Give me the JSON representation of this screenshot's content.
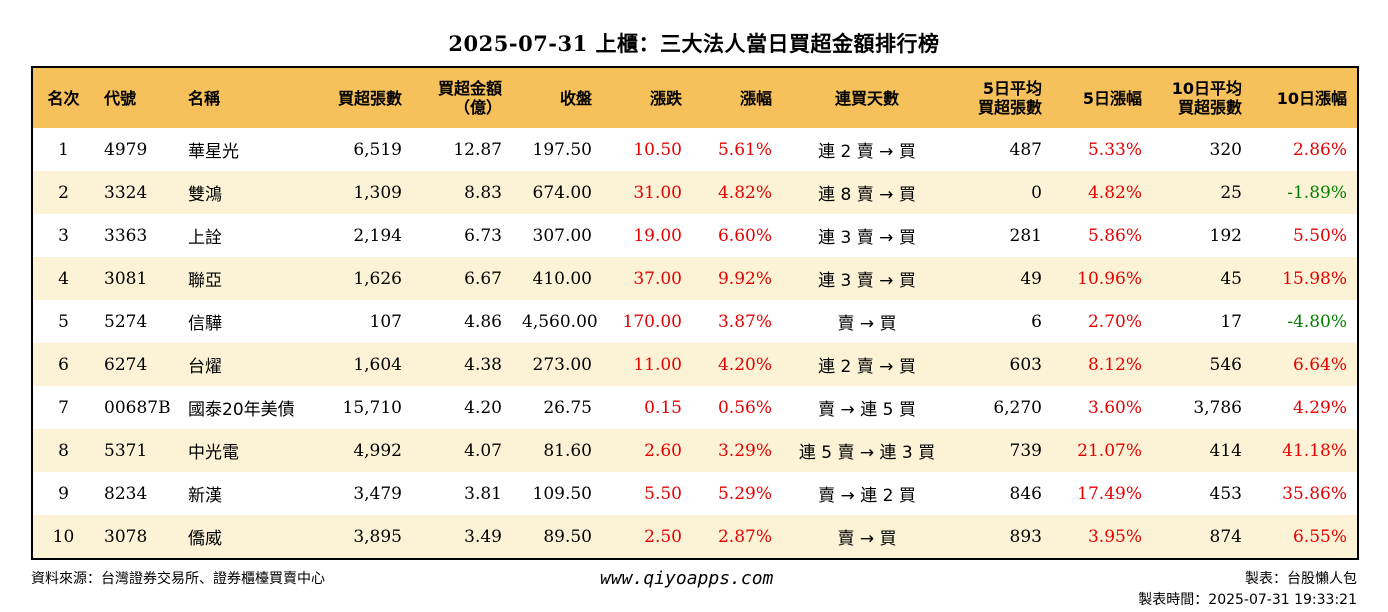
{
  "title": "2025-07-31 上櫃：三大法人當日買超金額排行榜",
  "headers": {
    "rank": "名次",
    "code": "代號",
    "name": "名稱",
    "buy_shares": "買超張數",
    "buy_amount_1": "買超金額",
    "buy_amount_2": "（億）",
    "close": "收盤",
    "change": "漲跌",
    "pct": "漲幅",
    "days": "連買天數",
    "avg5_1": "5日平均",
    "avg5_2": "買超張數",
    "pct5": "5日漲幅",
    "avg10_1": "10日平均",
    "avg10_2": "買超張數",
    "pct10": "10日漲幅"
  },
  "rows": [
    {
      "rank": "1",
      "code": "4979",
      "name": "華星光",
      "buy_shares": "6,519",
      "amount": "12.87",
      "close": "197.50",
      "change": "10.50",
      "pct": "5.61%",
      "days": "連 2 賣 → 買",
      "avg5": "487",
      "pct5": "5.33%",
      "avg10": "320",
      "pct10": "2.86%",
      "pct10_dir": "up"
    },
    {
      "rank": "2",
      "code": "3324",
      "name": "雙鴻",
      "buy_shares": "1,309",
      "amount": "8.83",
      "close": "674.00",
      "change": "31.00",
      "pct": "4.82%",
      "days": "連 8 賣 → 買",
      "avg5": "0",
      "pct5": "4.82%",
      "avg10": "25",
      "pct10": "-1.89%",
      "pct10_dir": "down"
    },
    {
      "rank": "3",
      "code": "3363",
      "name": "上詮",
      "buy_shares": "2,194",
      "amount": "6.73",
      "close": "307.00",
      "change": "19.00",
      "pct": "6.60%",
      "days": "連 3 賣 → 買",
      "avg5": "281",
      "pct5": "5.86%",
      "avg10": "192",
      "pct10": "5.50%",
      "pct10_dir": "up"
    },
    {
      "rank": "4",
      "code": "3081",
      "name": "聯亞",
      "buy_shares": "1,626",
      "amount": "6.67",
      "close": "410.00",
      "change": "37.00",
      "pct": "9.92%",
      "days": "連 3 賣 → 買",
      "avg5": "49",
      "pct5": "10.96%",
      "avg10": "45",
      "pct10": "15.98%",
      "pct10_dir": "up"
    },
    {
      "rank": "5",
      "code": "5274",
      "name": "信驊",
      "buy_shares": "107",
      "amount": "4.86",
      "close": "4,560.00",
      "change": "170.00",
      "pct": "3.87%",
      "days": "賣 → 買",
      "avg5": "6",
      "pct5": "2.70%",
      "avg10": "17",
      "pct10": "-4.80%",
      "pct10_dir": "down"
    },
    {
      "rank": "6",
      "code": "6274",
      "name": "台燿",
      "buy_shares": "1,604",
      "amount": "4.38",
      "close": "273.00",
      "change": "11.00",
      "pct": "4.20%",
      "days": "連 2 賣 → 買",
      "avg5": "603",
      "pct5": "8.12%",
      "avg10": "546",
      "pct10": "6.64%",
      "pct10_dir": "up"
    },
    {
      "rank": "7",
      "code": "00687B",
      "name": "國泰20年美債",
      "buy_shares": "15,710",
      "amount": "4.20",
      "close": "26.75",
      "change": "0.15",
      "pct": "0.56%",
      "days": "賣 → 連 5 買",
      "avg5": "6,270",
      "pct5": "3.60%",
      "avg10": "3,786",
      "pct10": "4.29%",
      "pct10_dir": "up"
    },
    {
      "rank": "8",
      "code": "5371",
      "name": "中光電",
      "buy_shares": "4,992",
      "amount": "4.07",
      "close": "81.60",
      "change": "2.60",
      "pct": "3.29%",
      "days": "連 5 賣 → 連 3 買",
      "avg5": "739",
      "pct5": "21.07%",
      "avg10": "414",
      "pct10": "41.18%",
      "pct10_dir": "up"
    },
    {
      "rank": "9",
      "code": "8234",
      "name": "新漢",
      "buy_shares": "3,479",
      "amount": "3.81",
      "close": "109.50",
      "change": "5.50",
      "pct": "5.29%",
      "days": "賣 → 連 2 買",
      "avg5": "846",
      "pct5": "17.49%",
      "avg10": "453",
      "pct10": "35.86%",
      "pct10_dir": "up"
    },
    {
      "rank": "10",
      "code": "3078",
      "name": "僑威",
      "buy_shares": "3,895",
      "amount": "3.49",
      "close": "89.50",
      "change": "2.50",
      "pct": "2.87%",
      "days": "賣 → 買",
      "avg5": "893",
      "pct5": "3.95%",
      "avg10": "874",
      "pct10": "6.55%",
      "pct10_dir": "up"
    }
  ],
  "footer": {
    "source": "資料來源：台灣證券交易所、證券櫃檯買賣中心",
    "website": "www.qiyoapps.com",
    "maker": "製表：台股懶人包",
    "made_time": "製表時間：2025-07-31 19:33:21"
  },
  "colors": {
    "header_bg": "#f6c05a",
    "stripe_bg": "#fcf3d6",
    "up": "#e60000",
    "down": "#008000"
  }
}
